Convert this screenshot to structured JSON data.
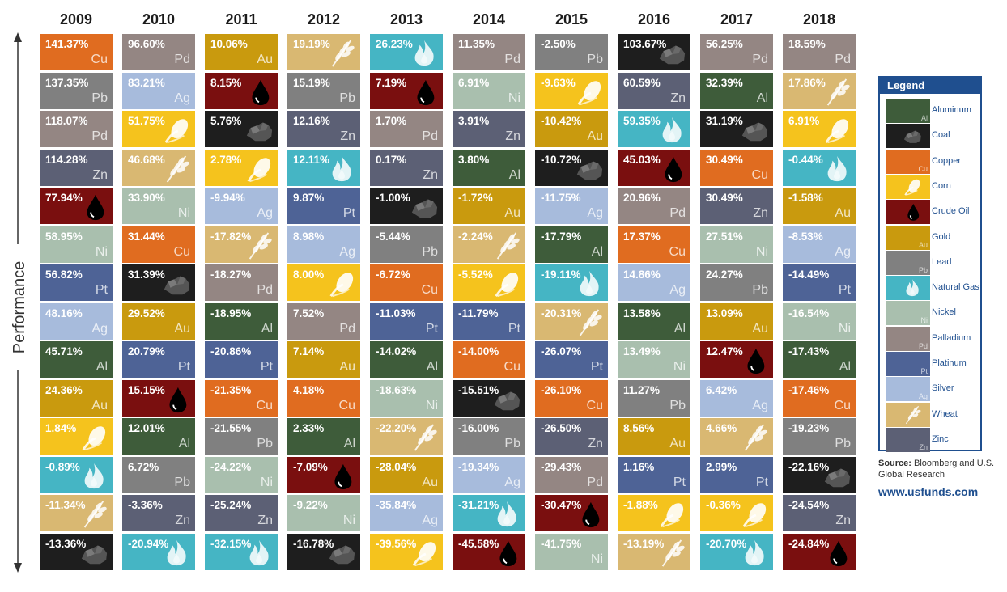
{
  "axis_label": "Performance",
  "legend": {
    "title": "Legend",
    "items": [
      {
        "key": "Al",
        "label": "Aluminum"
      },
      {
        "key": "Coal",
        "label": "Coal"
      },
      {
        "key": "Cu",
        "label": "Copper"
      },
      {
        "key": "Corn",
        "label": "Corn"
      },
      {
        "key": "Oil",
        "label": "Crude Oil"
      },
      {
        "key": "Au",
        "label": "Gold"
      },
      {
        "key": "Pb",
        "label": "Lead"
      },
      {
        "key": "Gas",
        "label": "Natural Gas"
      },
      {
        "key": "Ni",
        "label": "Nickel"
      },
      {
        "key": "Pd",
        "label": "Palladium"
      },
      {
        "key": "Pt",
        "label": "Platinum"
      },
      {
        "key": "Ag",
        "label": "Silver"
      },
      {
        "key": "Wheat",
        "label": "Wheat"
      },
      {
        "key": "Zn",
        "label": "Zinc"
      }
    ]
  },
  "commodities": {
    "Al": {
      "symbol": "Al",
      "icon": "",
      "color": "#3e5c3a"
    },
    "Coal": {
      "symbol": "",
      "icon": "coal-icon",
      "color": "#1e1e1e"
    },
    "Cu": {
      "symbol": "Cu",
      "icon": "",
      "color": "#e06c20"
    },
    "Corn": {
      "symbol": "",
      "icon": "corn-icon",
      "color": "#f5c31d"
    },
    "Oil": {
      "symbol": "",
      "icon": "oil-drop-icon",
      "color": "#7a0f0f"
    },
    "Au": {
      "symbol": "Au",
      "icon": "",
      "color": "#c99a0e"
    },
    "Pb": {
      "symbol": "Pb",
      "icon": "",
      "color": "#808080"
    },
    "Gas": {
      "symbol": "",
      "icon": "flame-icon",
      "color": "#45b5c4"
    },
    "Ni": {
      "symbol": "Ni",
      "icon": "",
      "color": "#a9bfae"
    },
    "Pd": {
      "symbol": "Pd",
      "icon": "",
      "color": "#948683"
    },
    "Pt": {
      "symbol": "Pt",
      "icon": "",
      "color": "#4e6396"
    },
    "Ag": {
      "symbol": "Ag",
      "icon": "",
      "color": "#a7bbdc"
    },
    "Wheat": {
      "symbol": "",
      "icon": "wheat-icon",
      "color": "#d9b872"
    },
    "Zn": {
      "symbol": "Zn",
      "icon": "",
      "color": "#5c6075"
    }
  },
  "source": {
    "label": "Source:",
    "text": "Bloomberg and U.S. Global Research"
  },
  "website": "www.usfunds.com",
  "chart_data": {
    "type": "table",
    "columns": [
      {
        "year": "2009",
        "cells": [
          {
            "value": "141.37%",
            "key": "Cu"
          },
          {
            "value": "137.35%",
            "key": "Pb"
          },
          {
            "value": "118.07%",
            "key": "Pd"
          },
          {
            "value": "114.28%",
            "key": "Zn"
          },
          {
            "value": "77.94%",
            "key": "Oil"
          },
          {
            "value": "58.95%",
            "key": "Ni"
          },
          {
            "value": "56.82%",
            "key": "Pt"
          },
          {
            "value": "48.16%",
            "key": "Ag"
          },
          {
            "value": "45.71%",
            "key": "Al"
          },
          {
            "value": "24.36%",
            "key": "Au"
          },
          {
            "value": "1.84%",
            "key": "Corn"
          },
          {
            "value": "-0.89%",
            "key": "Gas"
          },
          {
            "value": "-11.34%",
            "key": "Wheat"
          },
          {
            "value": "-13.36%",
            "key": "Coal"
          }
        ]
      },
      {
        "year": "2010",
        "cells": [
          {
            "value": "96.60%",
            "key": "Pd"
          },
          {
            "value": "83.21%",
            "key": "Ag"
          },
          {
            "value": "51.75%",
            "key": "Corn"
          },
          {
            "value": "46.68%",
            "key": "Wheat"
          },
          {
            "value": "33.90%",
            "key": "Ni"
          },
          {
            "value": "31.44%",
            "key": "Cu"
          },
          {
            "value": "31.39%",
            "key": "Coal"
          },
          {
            "value": "29.52%",
            "key": "Au"
          },
          {
            "value": "20.79%",
            "key": "Pt"
          },
          {
            "value": "15.15%",
            "key": "Oil"
          },
          {
            "value": "12.01%",
            "key": "Al"
          },
          {
            "value": "6.72%",
            "key": "Pb"
          },
          {
            "value": "-3.36%",
            "key": "Zn"
          },
          {
            "value": "-20.94%",
            "key": "Gas"
          }
        ]
      },
      {
        "year": "2011",
        "cells": [
          {
            "value": "10.06%",
            "key": "Au"
          },
          {
            "value": "8.15%",
            "key": "Oil"
          },
          {
            "value": "5.76%",
            "key": "Coal"
          },
          {
            "value": "2.78%",
            "key": "Corn"
          },
          {
            "value": "-9.94%",
            "key": "Ag"
          },
          {
            "value": "-17.82%",
            "key": "Wheat"
          },
          {
            "value": "-18.27%",
            "key": "Pd"
          },
          {
            "value": "-18.95%",
            "key": "Al"
          },
          {
            "value": "-20.86%",
            "key": "Pt"
          },
          {
            "value": "-21.35%",
            "key": "Cu"
          },
          {
            "value": "-21.55%",
            "key": "Pb"
          },
          {
            "value": "-24.22%",
            "key": "Ni"
          },
          {
            "value": "-25.24%",
            "key": "Zn"
          },
          {
            "value": "-32.15%",
            "key": "Gas"
          }
        ]
      },
      {
        "year": "2012",
        "cells": [
          {
            "value": "19.19%",
            "key": "Wheat"
          },
          {
            "value": "15.19%",
            "key": "Pb"
          },
          {
            "value": "12.16%",
            "key": "Zn"
          },
          {
            "value": "12.11%",
            "key": "Gas"
          },
          {
            "value": "9.87%",
            "key": "Pt"
          },
          {
            "value": "8.98%",
            "key": "Ag"
          },
          {
            "value": "8.00%",
            "key": "Corn"
          },
          {
            "value": "7.52%",
            "key": "Pd"
          },
          {
            "value": "7.14%",
            "key": "Au"
          },
          {
            "value": "4.18%",
            "key": "Cu"
          },
          {
            "value": "2.33%",
            "key": "Al"
          },
          {
            "value": "-7.09%",
            "key": "Oil"
          },
          {
            "value": "-9.22%",
            "key": "Ni"
          },
          {
            "value": "-16.78%",
            "key": "Coal"
          }
        ]
      },
      {
        "year": "2013",
        "cells": [
          {
            "value": "26.23%",
            "key": "Gas"
          },
          {
            "value": "7.19%",
            "key": "Oil"
          },
          {
            "value": "1.70%",
            "key": "Pd"
          },
          {
            "value": "0.17%",
            "key": "Zn"
          },
          {
            "value": "-1.00%",
            "key": "Coal"
          },
          {
            "value": "-5.44%",
            "key": "Pb"
          },
          {
            "value": "-6.72%",
            "key": "Cu"
          },
          {
            "value": "-11.03%",
            "key": "Pt"
          },
          {
            "value": "-14.02%",
            "key": "Al"
          },
          {
            "value": "-18.63%",
            "key": "Ni"
          },
          {
            "value": "-22.20%",
            "key": "Wheat"
          },
          {
            "value": "-28.04%",
            "key": "Au"
          },
          {
            "value": "-35.84%",
            "key": "Ag"
          },
          {
            "value": "-39.56%",
            "key": "Corn"
          }
        ]
      },
      {
        "year": "2014",
        "cells": [
          {
            "value": "11.35%",
            "key": "Pd"
          },
          {
            "value": "6.91%",
            "key": "Ni"
          },
          {
            "value": "3.91%",
            "key": "Zn"
          },
          {
            "value": "3.80%",
            "key": "Al"
          },
          {
            "value": "-1.72%",
            "key": "Au"
          },
          {
            "value": "-2.24%",
            "key": "Wheat"
          },
          {
            "value": "-5.52%",
            "key": "Corn"
          },
          {
            "value": "-11.79%",
            "key": "Pt"
          },
          {
            "value": "-14.00%",
            "key": "Cu"
          },
          {
            "value": "-15.51%",
            "key": "Coal"
          },
          {
            "value": "-16.00%",
            "key": "Pb"
          },
          {
            "value": "-19.34%",
            "key": "Ag"
          },
          {
            "value": "-31.21%",
            "key": "Gas"
          },
          {
            "value": "-45.58%",
            "key": "Oil"
          }
        ]
      },
      {
        "year": "2015",
        "cells": [
          {
            "value": "-2.50%",
            "key": "Pb"
          },
          {
            "value": "-9.63%",
            "key": "Corn"
          },
          {
            "value": "-10.42%",
            "key": "Au"
          },
          {
            "value": "-10.72%",
            "key": "Coal"
          },
          {
            "value": "-11.75%",
            "key": "Ag"
          },
          {
            "value": "-17.79%",
            "key": "Al"
          },
          {
            "value": "-19.11%",
            "key": "Gas"
          },
          {
            "value": "-20.31%",
            "key": "Wheat"
          },
          {
            "value": "-26.07%",
            "key": "Pt"
          },
          {
            "value": "-26.10%",
            "key": "Cu"
          },
          {
            "value": "-26.50%",
            "key": "Zn"
          },
          {
            "value": "-29.43%",
            "key": "Pd"
          },
          {
            "value": "-30.47%",
            "key": "Oil"
          },
          {
            "value": "-41.75%",
            "key": "Ni"
          }
        ]
      },
      {
        "year": "2016",
        "cells": [
          {
            "value": "103.67%",
            "key": "Coal"
          },
          {
            "value": "60.59%",
            "key": "Zn"
          },
          {
            "value": "59.35%",
            "key": "Gas"
          },
          {
            "value": "45.03%",
            "key": "Oil"
          },
          {
            "value": "20.96%",
            "key": "Pd"
          },
          {
            "value": "17.37%",
            "key": "Cu"
          },
          {
            "value": "14.86%",
            "key": "Ag"
          },
          {
            "value": "13.58%",
            "key": "Al"
          },
          {
            "value": "13.49%",
            "key": "Ni"
          },
          {
            "value": "11.27%",
            "key": "Pb"
          },
          {
            "value": "8.56%",
            "key": "Au"
          },
          {
            "value": "1.16%",
            "key": "Pt"
          },
          {
            "value": "-1.88%",
            "key": "Corn"
          },
          {
            "value": "-13.19%",
            "key": "Wheat"
          }
        ]
      },
      {
        "year": "2017",
        "cells": [
          {
            "value": "56.25%",
            "key": "Pd"
          },
          {
            "value": "32.39%",
            "key": "Al"
          },
          {
            "value": "31.19%",
            "key": "Coal"
          },
          {
            "value": "30.49%",
            "key": "Cu"
          },
          {
            "value": "30.49%",
            "key": "Zn"
          },
          {
            "value": "27.51%",
            "key": "Ni"
          },
          {
            "value": "24.27%",
            "key": "Pb"
          },
          {
            "value": "13.09%",
            "key": "Au"
          },
          {
            "value": "12.47%",
            "key": "Oil"
          },
          {
            "value": "6.42%",
            "key": "Ag"
          },
          {
            "value": "4.66%",
            "key": "Wheat"
          },
          {
            "value": "2.99%",
            "key": "Pt"
          },
          {
            "value": "-0.36%",
            "key": "Corn"
          },
          {
            "value": "-20.70%",
            "key": "Gas"
          }
        ]
      },
      {
        "year": "2018",
        "cells": [
          {
            "value": "18.59%",
            "key": "Pd"
          },
          {
            "value": "17.86%",
            "key": "Wheat"
          },
          {
            "value": "6.91%",
            "key": "Corn"
          },
          {
            "value": "-0.44%",
            "key": "Gas"
          },
          {
            "value": "-1.58%",
            "key": "Au"
          },
          {
            "value": "-8.53%",
            "key": "Ag"
          },
          {
            "value": "-14.49%",
            "key": "Pt"
          },
          {
            "value": "-16.54%",
            "key": "Ni"
          },
          {
            "value": "-17.43%",
            "key": "Al"
          },
          {
            "value": "-17.46%",
            "key": "Cu"
          },
          {
            "value": "-19.23%",
            "key": "Pb"
          },
          {
            "value": "-22.16%",
            "key": "Coal"
          },
          {
            "value": "-24.54%",
            "key": "Zn"
          },
          {
            "value": "-24.84%",
            "key": "Oil"
          }
        ]
      }
    ]
  }
}
